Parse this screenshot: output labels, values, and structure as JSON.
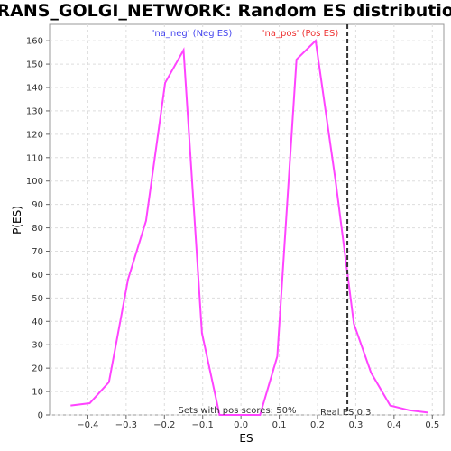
{
  "chart_data": {
    "type": "line",
    "title": "TRANS_GOLGI_NETWORK: Random ES distribution",
    "xlabel": "ES",
    "ylabel": "P(ES)",
    "xlim": [
      -0.5,
      0.53
    ],
    "ylim": [
      0,
      167
    ],
    "xticks": [
      -0.4,
      -0.3,
      -0.2,
      -0.1,
      0.0,
      0.1,
      0.2,
      0.3,
      0.4,
      0.5
    ],
    "xtick_labels": [
      "−0.4",
      "−0.3",
      "−0.2",
      "−0.1",
      "0.0",
      "0.1",
      "0.2",
      "0.3",
      "0.4",
      "0.5"
    ],
    "yticks": [
      0,
      10,
      20,
      30,
      40,
      50,
      60,
      70,
      80,
      90,
      100,
      110,
      120,
      130,
      140,
      150,
      160
    ],
    "grid": true,
    "legend": {
      "neg": {
        "label": "'na_neg' (Neg ES)",
        "color": "#4444ee"
      },
      "pos": {
        "label": "'na_pos' (Pos ES)",
        "color": "#ee3333"
      }
    },
    "series": [
      {
        "color": "#ff44ff",
        "x": [
          -0.445,
          -0.395,
          -0.345,
          -0.295,
          -0.248,
          -0.198,
          -0.15,
          -0.102,
          -0.056,
          -0.005,
          0.05,
          0.095,
          0.145,
          0.195,
          0.248,
          0.295,
          0.34,
          0.39,
          0.44,
          0.488
        ],
        "y": [
          4,
          5,
          14,
          58,
          83,
          142,
          156,
          35,
          0,
          0,
          0,
          25,
          152,
          160,
          99,
          39,
          18,
          4,
          2,
          1
        ]
      }
    ],
    "real_es": {
      "x": 0.278,
      "label": "Real ES 0.3",
      "color": "#333333"
    },
    "footnote": "Sets with pos scores: 50%"
  }
}
